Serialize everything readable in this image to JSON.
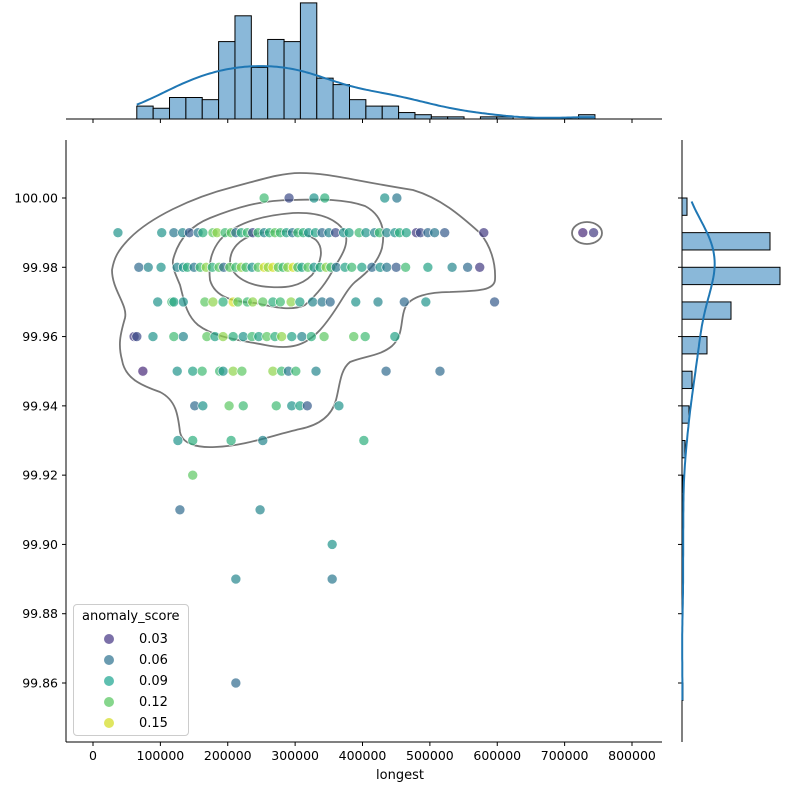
{
  "chart_data": {
    "type": "scatter",
    "xlabel": "longest",
    "ylabel": "",
    "xlim": [
      -40000,
      845000
    ],
    "ylim": [
      99.844,
      100.017
    ],
    "x_ticks": [
      "0",
      "100000",
      "200000",
      "300000",
      "400000",
      "500000",
      "600000",
      "700000",
      "800000"
    ],
    "y_ticks": [
      "99.86",
      "99.88",
      "99.90",
      "99.92",
      "99.94",
      "99.96",
      "99.98",
      "100.00"
    ],
    "grid": false,
    "colormap": "viridis",
    "hue_range": [
      0.0,
      0.155
    ],
    "legend": {
      "title": "anomaly_score",
      "placement": "bottom-left",
      "entries": [
        "0.03",
        "0.06",
        "0.09",
        "0.12",
        "0.15"
      ],
      "colors": [
        "#7b70a8",
        "#6a9bb0",
        "#5ebfb0",
        "#86d68c",
        "#e0e660"
      ]
    },
    "points": [
      [
        254000,
        100.0,
        0.12
      ],
      [
        291000,
        100.0,
        0.04
      ],
      [
        328000,
        100.0,
        0.09
      ],
      [
        344000,
        100.0,
        0.11
      ],
      [
        433000,
        100.0,
        0.09
      ],
      [
        451000,
        100.0,
        0.07
      ],
      [
        37000,
        99.99,
        0.09
      ],
      [
        102000,
        99.99,
        0.09
      ],
      [
        120000,
        99.99,
        0.07
      ],
      [
        133000,
        99.99,
        0.08
      ],
      [
        143000,
        99.99,
        0.05
      ],
      [
        156000,
        99.99,
        0.07
      ],
      [
        163000,
        99.99,
        0.11
      ],
      [
        178000,
        99.99,
        0.13
      ],
      [
        184000,
        99.99,
        0.14
      ],
      [
        196000,
        99.99,
        0.12
      ],
      [
        205000,
        99.99,
        0.13
      ],
      [
        212000,
        99.99,
        0.06
      ],
      [
        220000,
        99.99,
        0.11
      ],
      [
        229000,
        99.99,
        0.12
      ],
      [
        237000,
        99.99,
        0.04
      ],
      [
        245000,
        99.99,
        0.12
      ],
      [
        254000,
        99.99,
        0.08
      ],
      [
        262000,
        99.99,
        0.11
      ],
      [
        270000,
        99.99,
        0.13
      ],
      [
        278000,
        99.99,
        0.12
      ],
      [
        287000,
        99.99,
        0.1
      ],
      [
        296000,
        99.99,
        0.07
      ],
      [
        304000,
        99.99,
        0.12
      ],
      [
        312000,
        99.99,
        0.11
      ],
      [
        320000,
        99.99,
        0.09
      ],
      [
        330000,
        99.99,
        0.1
      ],
      [
        340000,
        99.99,
        0.06
      ],
      [
        350000,
        99.99,
        0.08
      ],
      [
        360000,
        99.99,
        0.04
      ],
      [
        372000,
        99.99,
        0.09
      ],
      [
        380000,
        99.99,
        0.1
      ],
      [
        395000,
        99.99,
        0.12
      ],
      [
        405000,
        99.99,
        0.09
      ],
      [
        418000,
        99.99,
        0.08
      ],
      [
        425000,
        99.99,
        0.12
      ],
      [
        436000,
        99.99,
        0.08
      ],
      [
        448000,
        99.99,
        0.09
      ],
      [
        455000,
        99.99,
        0.11
      ],
      [
        465000,
        99.99,
        0.1
      ],
      [
        480000,
        99.99,
        0.03
      ],
      [
        486000,
        99.99,
        0.04
      ],
      [
        497000,
        99.99,
        0.06
      ],
      [
        507000,
        99.99,
        0.07
      ],
      [
        522000,
        99.99,
        0.05
      ],
      [
        580000,
        99.99,
        0.03
      ],
      [
        727000,
        99.99,
        0.02
      ],
      [
        743000,
        99.99,
        0.03
      ],
      [
        68000,
        99.98,
        0.06
      ],
      [
        82000,
        99.98,
        0.08
      ],
      [
        101000,
        99.98,
        0.09
      ],
      [
        125000,
        99.98,
        0.08
      ],
      [
        134000,
        99.98,
        0.09
      ],
      [
        140000,
        99.98,
        0.11
      ],
      [
        150000,
        99.98,
        0.07
      ],
      [
        159000,
        99.98,
        0.12
      ],
      [
        168000,
        99.98,
        0.14
      ],
      [
        177000,
        99.98,
        0.11
      ],
      [
        187000,
        99.98,
        0.13
      ],
      [
        194000,
        99.98,
        0.06
      ],
      [
        203000,
        99.98,
        0.13
      ],
      [
        212000,
        99.98,
        0.12
      ],
      [
        220000,
        99.98,
        0.14
      ],
      [
        227000,
        99.98,
        0.12
      ],
      [
        236000,
        99.98,
        0.09
      ],
      [
        245000,
        99.98,
        0.13
      ],
      [
        254000,
        99.98,
        0.15
      ],
      [
        260000,
        99.98,
        0.14
      ],
      [
        267000,
        99.98,
        0.15
      ],
      [
        275000,
        99.98,
        0.13
      ],
      [
        282000,
        99.98,
        0.12
      ],
      [
        289000,
        99.98,
        0.14
      ],
      [
        297000,
        99.98,
        0.15
      ],
      [
        304000,
        99.98,
        0.12
      ],
      [
        310000,
        99.98,
        0.1
      ],
      [
        319000,
        99.98,
        0.13
      ],
      [
        328000,
        99.98,
        0.09
      ],
      [
        337000,
        99.98,
        0.11
      ],
      [
        346000,
        99.98,
        0.14
      ],
      [
        353000,
        99.98,
        0.12
      ],
      [
        361000,
        99.98,
        0.07
      ],
      [
        374000,
        99.98,
        0.1
      ],
      [
        384000,
        99.98,
        0.12
      ],
      [
        399000,
        99.98,
        0.1
      ],
      [
        414000,
        99.98,
        0.06
      ],
      [
        426000,
        99.98,
        0.09
      ],
      [
        436000,
        99.98,
        0.07
      ],
      [
        450000,
        99.98,
        0.05
      ],
      [
        464000,
        99.98,
        0.12
      ],
      [
        497000,
        99.98,
        0.1
      ],
      [
        533000,
        99.98,
        0.08
      ],
      [
        556000,
        99.98,
        0.06
      ],
      [
        574000,
        99.98,
        0.03
      ],
      [
        96000,
        99.97,
        0.09
      ],
      [
        117000,
        99.97,
        0.12
      ],
      [
        120000,
        99.97,
        0.1
      ],
      [
        134000,
        99.97,
        0.09
      ],
      [
        166000,
        99.97,
        0.13
      ],
      [
        178000,
        99.97,
        0.14
      ],
      [
        193000,
        99.97,
        0.11
      ],
      [
        208000,
        99.97,
        0.15
      ],
      [
        215000,
        99.97,
        0.13
      ],
      [
        229000,
        99.97,
        0.12
      ],
      [
        237000,
        99.97,
        0.14
      ],
      [
        252000,
        99.97,
        0.13
      ],
      [
        267000,
        99.97,
        0.11
      ],
      [
        278000,
        99.97,
        0.12
      ],
      [
        294000,
        99.97,
        0.14
      ],
      [
        307000,
        99.97,
        0.1
      ],
      [
        326000,
        99.97,
        0.08
      ],
      [
        340000,
        99.97,
        0.07
      ],
      [
        352000,
        99.97,
        0.06
      ],
      [
        390000,
        99.97,
        0.09
      ],
      [
        423000,
        99.97,
        0.08
      ],
      [
        462000,
        99.97,
        0.06
      ],
      [
        494000,
        99.97,
        0.09
      ],
      [
        596000,
        99.97,
        0.05
      ],
      [
        61000,
        99.96,
        0.03
      ],
      [
        65000,
        99.96,
        0.04
      ],
      [
        89000,
        99.96,
        0.09
      ],
      [
        120000,
        99.96,
        0.12
      ],
      [
        134000,
        99.96,
        0.08
      ],
      [
        169000,
        99.96,
        0.13
      ],
      [
        181000,
        99.96,
        0.1
      ],
      [
        193000,
        99.96,
        0.14
      ],
      [
        208000,
        99.96,
        0.11
      ],
      [
        223000,
        99.96,
        0.09
      ],
      [
        236000,
        99.96,
        0.12
      ],
      [
        246000,
        99.96,
        0.1
      ],
      [
        258000,
        99.96,
        0.13
      ],
      [
        270000,
        99.96,
        0.11
      ],
      [
        280000,
        99.96,
        0.14
      ],
      [
        295000,
        99.96,
        0.1
      ],
      [
        310000,
        99.96,
        0.08
      ],
      [
        324000,
        99.96,
        0.11
      ],
      [
        343000,
        99.96,
        0.13
      ],
      [
        387000,
        99.96,
        0.13
      ],
      [
        404000,
        99.96,
        0.12
      ],
      [
        448000,
        99.96,
        0.1
      ],
      [
        74000,
        99.95,
        0.02
      ],
      [
        125000,
        99.95,
        0.09
      ],
      [
        148000,
        99.95,
        0.1
      ],
      [
        162000,
        99.95,
        0.12
      ],
      [
        188000,
        99.95,
        0.12
      ],
      [
        193000,
        99.95,
        0.09
      ],
      [
        208000,
        99.95,
        0.14
      ],
      [
        221000,
        99.95,
        0.13
      ],
      [
        267000,
        99.95,
        0.14
      ],
      [
        280000,
        99.95,
        0.12
      ],
      [
        290000,
        99.95,
        0.07
      ],
      [
        301000,
        99.95,
        0.12
      ],
      [
        331000,
        99.95,
        0.08
      ],
      [
        435000,
        99.95,
        0.06
      ],
      [
        515000,
        99.95,
        0.06
      ],
      [
        151000,
        99.94,
        0.06
      ],
      [
        163000,
        99.94,
        0.09
      ],
      [
        202000,
        99.94,
        0.13
      ],
      [
        223000,
        99.94,
        0.12
      ],
      [
        272000,
        99.94,
        0.12
      ],
      [
        295000,
        99.94,
        0.09
      ],
      [
        307000,
        99.94,
        0.1
      ],
      [
        318000,
        99.94,
        0.05
      ],
      [
        365000,
        99.94,
        0.09
      ],
      [
        126000,
        99.93,
        0.09
      ],
      [
        148000,
        99.93,
        0.11
      ],
      [
        205000,
        99.93,
        0.11
      ],
      [
        252000,
        99.93,
        0.08
      ],
      [
        402000,
        99.93,
        0.11
      ],
      [
        148000,
        99.92,
        0.13
      ],
      [
        129000,
        99.91,
        0.06
      ],
      [
        248000,
        99.91,
        0.08
      ],
      [
        355000,
        99.9,
        0.09
      ],
      [
        212000,
        99.89,
        0.08
      ],
      [
        355000,
        99.89,
        0.07
      ],
      [
        212000,
        99.86,
        0.06
      ]
    ],
    "marginal_x_hist": {
      "range": [
        65000,
        745000
      ],
      "counts": [
        6,
        5,
        10,
        10,
        9,
        36,
        48,
        24,
        37,
        36,
        54,
        19,
        16,
        9,
        6,
        6,
        3,
        2,
        1,
        1,
        0,
        1,
        1,
        0,
        0,
        0,
        0,
        2
      ],
      "kde": true
    },
    "marginal_y_hist": {
      "bin_tops": [
        100.0,
        99.99,
        99.98,
        99.97,
        99.96,
        99.95,
        99.94,
        99.93,
        99.92,
        99.91,
        99.9,
        99.89,
        99.86
      ],
      "counts": [
        5,
        88,
        98,
        49,
        25,
        10,
        7,
        3,
        1,
        1,
        1,
        1,
        1
      ],
      "bin_width": 0.005,
      "kde": true
    }
  }
}
